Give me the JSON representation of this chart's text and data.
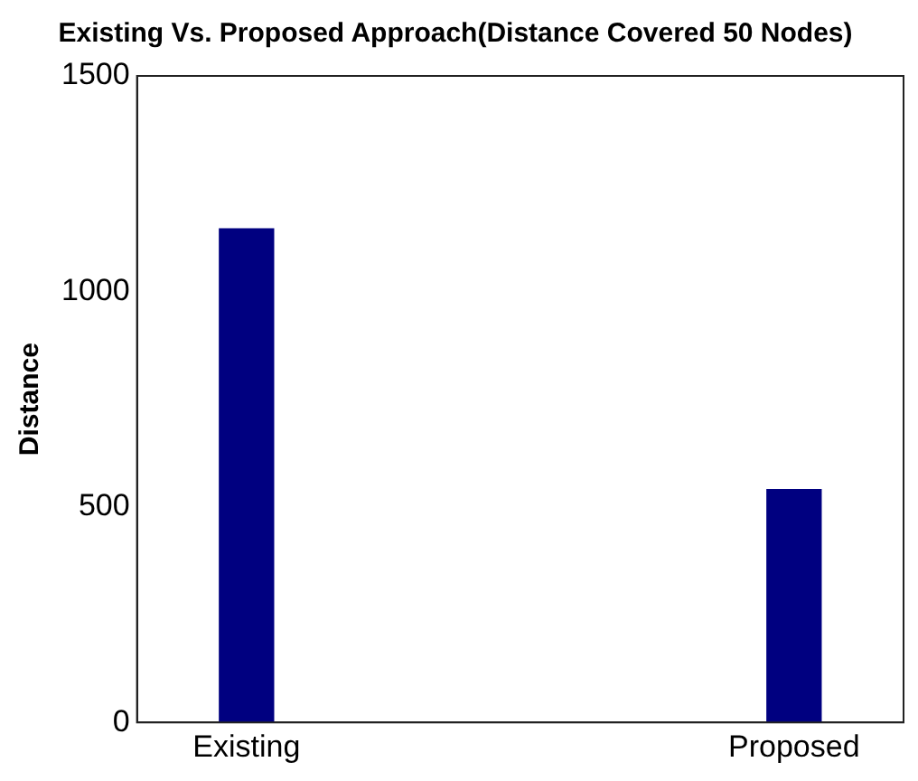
{
  "chart_data": {
    "type": "bar",
    "title": "Existing Vs. Proposed Approach(Distance Covered 50 Nodes)",
    "ylabel": "Distance",
    "categories": [
      "Existing",
      "Proposed"
    ],
    "values": [
      1145,
      540
    ],
    "color": "#000080",
    "ylim": [
      0,
      1500
    ],
    "yticks": [
      0,
      500,
      1000,
      1500
    ],
    "grid": false,
    "legend": false
  }
}
